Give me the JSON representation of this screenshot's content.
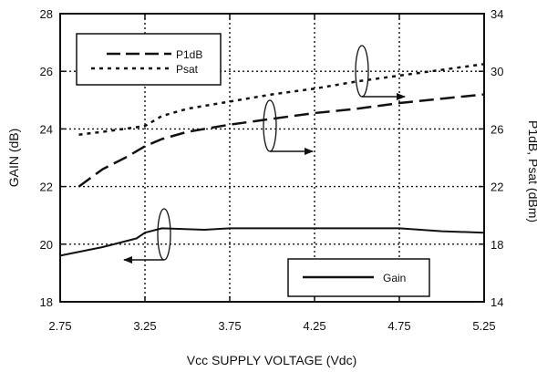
{
  "chart_data": {
    "type": "line",
    "xlabel": "Vcc SUPPLY VOLTAGE (Vdc)",
    "ylabel_left": "GAIN (dB)",
    "ylabel_right": "P1dB, Psat (dBm)",
    "x_ticks": [
      2.75,
      3.25,
      3.75,
      4.25,
      4.75,
      5.25
    ],
    "x_tick_labels": [
      "2.75",
      "3.25",
      "3.75",
      "4.25",
      "4.75",
      "5.25"
    ],
    "xlim": [
      2.75,
      5.25
    ],
    "y_left_ticks": [
      18,
      20,
      22,
      24,
      26,
      28
    ],
    "y_left_tick_labels": [
      "18",
      "20",
      "22",
      "24",
      "26",
      "28"
    ],
    "ylim_left": [
      18,
      28
    ],
    "y_right_ticks": [
      14,
      18,
      22,
      26,
      30,
      34
    ],
    "y_right_tick_labels": [
      "14",
      "18",
      "22",
      "26",
      "30",
      "34"
    ],
    "ylim_right": [
      14,
      34
    ],
    "grid": true,
    "grid_style": "dotted",
    "series": [
      {
        "name": "P1dB",
        "axis": "right",
        "style": "long-dash",
        "x": [
          2.86,
          3.0,
          3.15,
          3.25,
          3.35,
          3.5,
          3.75,
          4.0,
          4.25,
          4.5,
          4.75,
          5.0,
          5.25
        ],
        "y": [
          22.0,
          23.2,
          24.1,
          24.8,
          25.3,
          25.8,
          26.3,
          26.7,
          27.1,
          27.4,
          27.8,
          28.1,
          28.4
        ]
      },
      {
        "name": "Psat",
        "axis": "right",
        "style": "dotted",
        "x": [
          2.86,
          3.0,
          3.25,
          3.35,
          3.5,
          3.75,
          4.0,
          4.25,
          4.5,
          4.75,
          5.0,
          5.25
        ],
        "y": [
          25.6,
          25.8,
          26.2,
          26.9,
          27.4,
          27.9,
          28.4,
          28.8,
          29.3,
          29.7,
          30.1,
          30.5
        ]
      },
      {
        "name": "Gain",
        "axis": "left",
        "style": "solid",
        "x": [
          2.75,
          3.0,
          3.2,
          3.25,
          3.35,
          3.6,
          3.75,
          4.0,
          4.25,
          4.5,
          4.75,
          5.0,
          5.25
        ],
        "y": [
          19.6,
          19.9,
          20.2,
          20.4,
          20.55,
          20.5,
          20.55,
          20.55,
          20.55,
          20.55,
          20.55,
          20.45,
          20.4
        ]
      }
    ],
    "legends": [
      {
        "placement": "top-left",
        "entries": [
          "P1dB",
          "Psat"
        ]
      },
      {
        "placement": "bottom-right",
        "entries": [
          "Gain"
        ]
      }
    ],
    "annotations": [
      {
        "type": "axis-indicator",
        "series": "Gain",
        "axis": "left",
        "direction": "left"
      },
      {
        "type": "axis-indicator",
        "series": "P1dB",
        "axis": "right",
        "direction": "right"
      },
      {
        "type": "axis-indicator",
        "series": "Psat",
        "axis": "right",
        "direction": "right"
      }
    ]
  }
}
